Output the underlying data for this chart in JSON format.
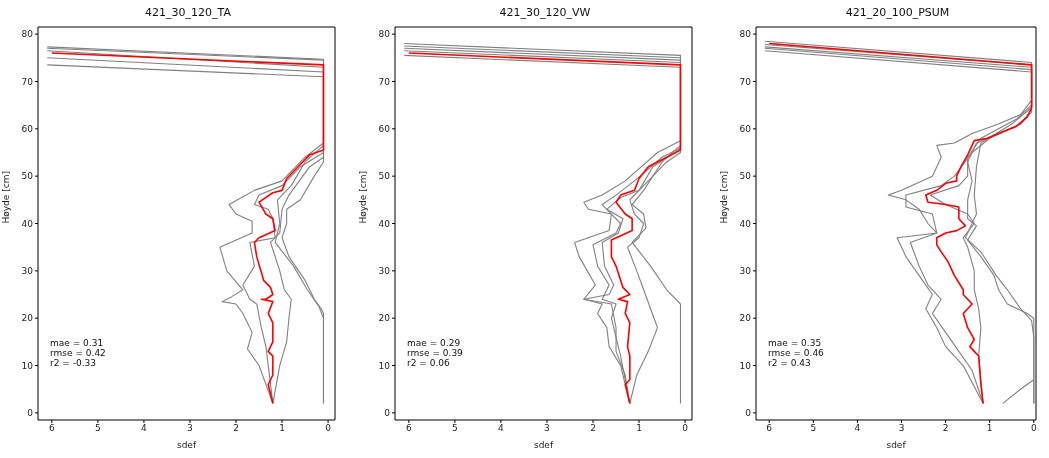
{
  "chart_data": [
    {
      "type": "line",
      "title": "421_30_120_TA",
      "xlabel": "sdef",
      "ylabel": "Høyde [cm]",
      "xlim": [
        6.3,
        -0.15
      ],
      "ylim": [
        -1.5,
        81.5
      ],
      "xticks": [
        6,
        5,
        4,
        3,
        2,
        1,
        0
      ],
      "yticks": [
        0,
        10,
        20,
        30,
        40,
        50,
        60,
        70,
        80
      ],
      "grid": false,
      "legend": false,
      "annotations": [
        "mae = 0.31",
        "rmse = 0.42",
        "r2 = -0.33"
      ],
      "series": [
        {
          "color": "#808080",
          "x": [
            6.1,
            0.1,
            0.1,
            0.5,
            1,
            1.6,
            2.15,
            2,
            1.65,
            1.65,
            2.35,
            2.2,
            1.85,
            2.1,
            2.3,
            2,
            1.85,
            1.65,
            1.75,
            1.5,
            1.2
          ],
          "values": [
            77,
            74.5,
            57,
            54,
            49,
            47,
            44,
            42,
            40.5,
            38,
            35,
            30,
            26,
            24.5,
            23.5,
            23,
            21,
            17,
            13.5,
            10,
            2
          ]
        },
        {
          "color": "#808080",
          "x": [
            6.1,
            0.1,
            0.1,
            0.6,
            1,
            1.5,
            1.6,
            1.3,
            1.2,
            1.15,
            1.7,
            1.6,
            1.85,
            1.7,
            1.55,
            1.45,
            1.35,
            1.3,
            1.2
          ],
          "values": [
            75,
            72,
            55,
            52,
            48,
            46,
            44,
            43,
            41,
            37,
            36,
            31,
            27,
            24,
            23,
            18,
            14,
            10,
            2
          ]
        },
        {
          "color": "#808080",
          "x": [
            6.1,
            0.1,
            0.1,
            0.4,
            0.85,
            1,
            1.05,
            1.25,
            1.05,
            0.95,
            0.8,
            0.85,
            0.9,
            1.05,
            1.2
          ],
          "values": [
            73.5,
            71,
            54,
            52,
            46,
            43,
            38,
            36,
            30,
            26,
            24,
            20,
            15,
            10,
            2
          ]
        },
        {
          "color": "#808080",
          "x": [
            6.1,
            0.1,
            0.1,
            0.3,
            0.6,
            0.9,
            0.9,
            1,
            0.85,
            0.5,
            0.3,
            0.15,
            0.1,
            0.1
          ],
          "values": [
            76.5,
            73,
            53,
            50,
            45,
            43,
            40,
            37,
            33,
            28,
            24,
            22,
            21,
            2
          ]
        },
        {
          "color": "#808080",
          "x": [
            6.1,
            0.1,
            0.1,
            0.5,
            0.8,
            1.1,
            1.05,
            1.15,
            0.75,
            0.45,
            0.2,
            0.1,
            0.1
          ],
          "values": [
            77.3,
            74.7,
            56.5,
            53,
            48,
            45,
            40,
            36,
            31,
            26,
            22.5,
            20,
            2
          ]
        },
        {
          "color": "#ff0000",
          "x": [
            6,
            0.1,
            0.1,
            0.4,
            0.7,
            0.9,
            1,
            1.2,
            1.5,
            1.35,
            1.2,
            1.15,
            1.5,
            1.6,
            1.55,
            1.4,
            1.25,
            1.2,
            1.35,
            1.45,
            1.2,
            1.3,
            1.2,
            1.2,
            1.3,
            1.2,
            1.2,
            1.3,
            1.2
          ],
          "values": [
            76,
            73.5,
            55.5,
            54.5,
            51.5,
            49.5,
            47,
            46.5,
            44.5,
            42,
            41,
            38.5,
            37,
            36,
            33,
            28,
            26.5,
            25,
            24,
            24,
            23.5,
            21,
            19,
            15,
            13,
            12,
            8,
            6,
            2
          ]
        }
      ]
    },
    {
      "type": "line",
      "title": "421_30_120_VW",
      "xlabel": "sdef",
      "ylabel": "Høyde [cm]",
      "xlim": [
        6.3,
        -0.15
      ],
      "ylim": [
        -1.5,
        81.5
      ],
      "xticks": [
        6,
        5,
        4,
        3,
        2,
        1,
        0
      ],
      "yticks": [
        0,
        10,
        20,
        30,
        40,
        50,
        60,
        70,
        80
      ],
      "grid": false,
      "legend": false,
      "annotations": [
        "mae = 0.29",
        "rmse = 0.39",
        "r2 = 0.06"
      ],
      "series": [
        {
          "color": "#808080",
          "x": [
            6.1,
            0.1,
            0.1,
            0.6,
            1.3,
            1.8,
            2.2,
            2.1,
            1.6,
            1.65,
            2.4,
            2.3,
            1.95,
            2.2,
            1.8,
            1.9,
            1.7,
            1.65,
            1.4,
            1.2
          ],
          "values": [
            78,
            75.5,
            57.5,
            55,
            49,
            46,
            44.5,
            43,
            42,
            38.5,
            36,
            33,
            27,
            24,
            23,
            21,
            18,
            14,
            10,
            2
          ]
        },
        {
          "color": "#808080",
          "x": [
            6.1,
            0.1,
            0.1,
            0.5,
            1.1,
            1.5,
            1.8,
            1.6,
            1.4,
            1.5,
            2,
            1.9,
            1.65,
            1.8,
            1.5,
            1.6,
            1.5,
            1.4,
            1.2
          ],
          "values": [
            77,
            74.5,
            56,
            54,
            49,
            46,
            44,
            42,
            40,
            38,
            35.5,
            31,
            27,
            24,
            23,
            20,
            16,
            12,
            2
          ]
        },
        {
          "color": "#808080",
          "x": [
            6.1,
            0.1,
            0.1,
            0.4,
            0.9,
            1.2,
            1.1,
            0.9,
            1,
            1.25,
            1.05,
            0.9,
            0.75,
            0.6,
            0.8,
            1.05,
            1.2
          ],
          "values": [
            75.5,
            73,
            55,
            53,
            48,
            45,
            42,
            40,
            37,
            35,
            30,
            26,
            22,
            18,
            13,
            8,
            2
          ]
        },
        {
          "color": "#808080",
          "x": [
            6.1,
            0.1,
            0.1,
            0.5,
            0.9,
            1.15,
            0.9,
            0.85,
            1.15,
            0.75,
            0.4,
            0.1,
            0.1
          ],
          "values": [
            77.5,
            75,
            56.5,
            53,
            47,
            44,
            42,
            39,
            36,
            31,
            26,
            23,
            2
          ]
        },
        {
          "color": "#808080",
          "x": [
            6.1,
            0.1,
            0.1,
            0.7,
            1,
            1.4,
            1.7,
            1.35,
            1.45,
            1.8,
            1.75,
            1.55,
            1.65,
            2.2,
            1.6,
            1.5,
            1.5,
            1.3,
            1.2
          ],
          "values": [
            76.5,
            74,
            55.8,
            52,
            47,
            45.5,
            43,
            41,
            38,
            36,
            31,
            27,
            25,
            24,
            23,
            18,
            13,
            8,
            2
          ]
        },
        {
          "color": "#ff0000",
          "x": [
            6,
            0.1,
            0.1,
            0.4,
            0.8,
            1,
            1.1,
            1.4,
            1.5,
            1.3,
            1.15,
            1.15,
            1.6,
            1.6,
            1.5,
            1.35,
            1.2,
            1.45,
            1.25,
            1.3,
            1.2,
            1.25,
            1.2,
            1.2,
            1.3,
            1.2
          ],
          "values": [
            76,
            73.5,
            55.5,
            54,
            52,
            49.5,
            47,
            46,
            44.5,
            42,
            41,
            38.5,
            36.5,
            33,
            31,
            26.5,
            25,
            24,
            23.5,
            21,
            19,
            14,
            12,
            7,
            6,
            2
          ]
        }
      ]
    },
    {
      "type": "line",
      "title": "421_20_100_PSUM",
      "xlabel": "sdef",
      "ylabel": "Høyde [cm]",
      "xlim": [
        6.3,
        -0.05
      ],
      "ylim": [
        -1.5,
        81.5
      ],
      "xticks": [
        6,
        5,
        4,
        3,
        2,
        1,
        0
      ],
      "yticks": [
        0,
        10,
        20,
        30,
        40,
        50,
        60,
        70,
        80
      ],
      "grid": false,
      "legend": false,
      "annotations": [
        "mae = 0.35",
        "rmse = 0.46",
        "r2 = 0.43"
      ],
      "series": [
        {
          "color": "#808080",
          "x": [
            6.1,
            0.05,
            0.05,
            0.3,
            0.8,
            1.4,
            1.8,
            2.2,
            2.1,
            2.3,
            3,
            3.3,
            2.9,
            2.6,
            2.4,
            2.2,
            3.1,
            2.9,
            2.6,
            2.3,
            2.45,
            2.2,
            2,
            1.6,
            1.15
          ],
          "values": [
            78.5,
            74,
            66,
            63,
            61,
            59,
            57,
            56.5,
            54,
            50,
            47,
            46,
            45,
            43,
            40,
            38,
            37,
            33,
            29,
            25,
            22,
            18,
            14,
            10,
            2
          ]
        },
        {
          "color": "#808080",
          "x": [
            6.1,
            0.05,
            0.05,
            0.3,
            1,
            1.4,
            1.8,
            2.1,
            2.9,
            2.9,
            2.3,
            2.2,
            2.8,
            2.6,
            2.4,
            2.1,
            2.3,
            2,
            1.7,
            1.4,
            1.15
          ],
          "values": [
            77,
            72.5,
            64,
            61,
            58,
            55,
            50,
            48,
            46,
            43.5,
            42,
            38,
            36,
            31,
            27,
            24,
            21,
            17,
            13,
            9,
            2
          ]
        },
        {
          "color": "#808080",
          "x": [
            6.1,
            0.05,
            0.05,
            0.4,
            1.2,
            1.5,
            1.5,
            1.7,
            2.35,
            2,
            1.5,
            1.35,
            1.6,
            1.5,
            1.35,
            1.35,
            1.25,
            1.2,
            1.25,
            1.15
          ],
          "values": [
            77.8,
            73.5,
            65,
            62,
            58,
            54,
            50,
            48,
            46,
            44,
            42,
            40,
            37,
            35,
            30,
            26,
            22,
            18,
            12,
            2
          ]
        },
        {
          "color": "#808080",
          "x": [
            6.1,
            0.05,
            0.05,
            0.3,
            0.8,
            1.3,
            1.5,
            1.4,
            1.5,
            1.5,
            1.3,
            1.5,
            1.2,
            0.9,
            0.8,
            0.6,
            0.15,
            0,
            0
          ],
          "values": [
            76.5,
            72,
            63.5,
            61,
            59,
            57,
            53,
            49,
            45,
            41,
            39.5,
            36.5,
            33,
            29,
            26,
            23,
            21,
            20,
            2
          ]
        },
        {
          "color": "#808080",
          "x": [
            6.1,
            0.05,
            0.05,
            0.5,
            1.2,
            1.3,
            1.35,
            1.3,
            1.55,
            1.2,
            0.85,
            0.6,
            0.3,
            0.05,
            0,
            0
          ],
          "values": [
            77.3,
            73,
            64.5,
            61,
            57,
            52,
            46,
            42,
            37,
            34,
            29,
            26,
            22,
            19.5,
            16,
            2
          ]
        },
        {
          "color": "#808080",
          "x": [
            0.7,
            0.3,
            0
          ],
          "values": [
            2,
            5,
            7
          ]
        },
        {
          "color": "#ff0000",
          "x": [
            6,
            0.05,
            0.05,
            0.15,
            0.4,
            0.8,
            1.05,
            1.35,
            1.5,
            1.65,
            1.75,
            1.75,
            2,
            2.2,
            2.45,
            2.4,
            2,
            1.7,
            1.7,
            1.55,
            1.75,
            2,
            2.2,
            2.2,
            2.1,
            1.95,
            1.8,
            1.6,
            1.6,
            1.4,
            1.5,
            1.6,
            1.5,
            1.35,
            1.45,
            1.35,
            1.25,
            1.2,
            1.15
          ],
          "values": [
            78,
            73.5,
            64.5,
            62.5,
            60.5,
            59,
            58,
            57.5,
            54.5,
            52,
            50,
            49,
            48.5,
            47,
            46,
            44.5,
            44,
            43.5,
            41,
            39.5,
            38.5,
            38,
            37,
            35.5,
            34,
            32,
            29,
            26,
            25,
            23,
            22,
            21,
            18,
            15.5,
            14,
            13,
            12,
            6,
            2
          ]
        }
      ]
    }
  ]
}
